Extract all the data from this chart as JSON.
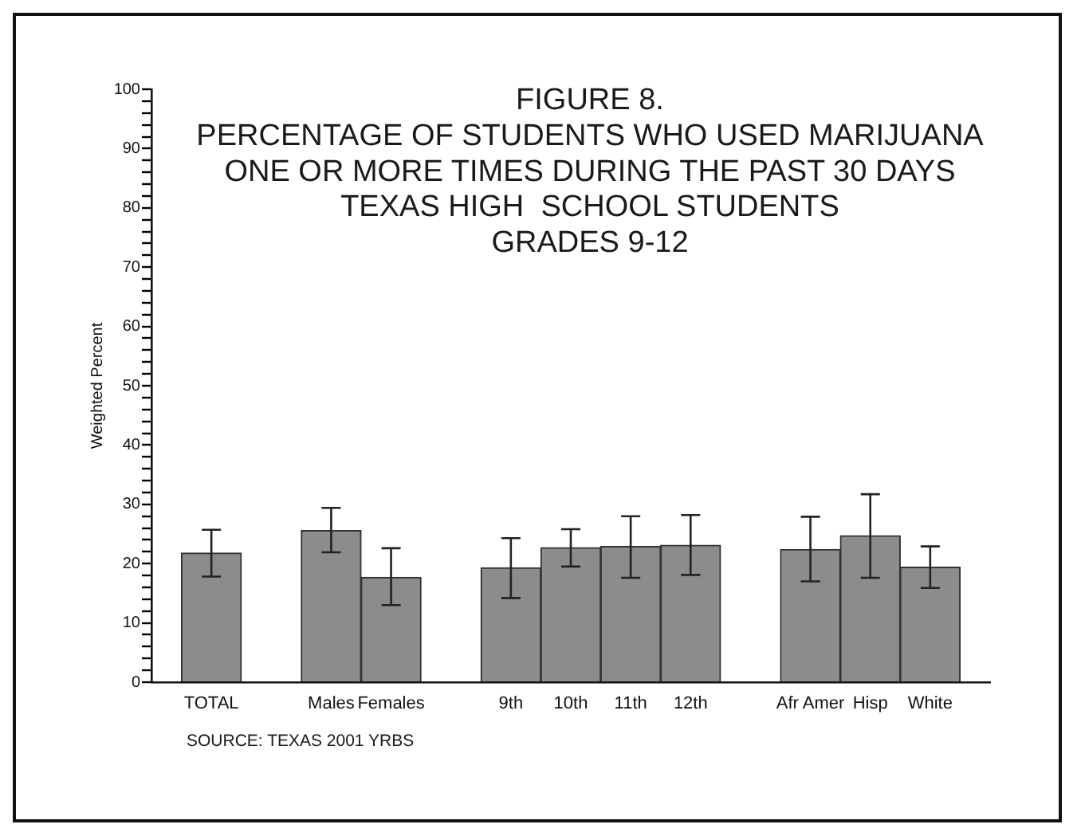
{
  "chart_data": {
    "type": "bar",
    "title": "FIGURE 8.\nPERCENTAGE OF STUDENTS WHO USED MARIJUANA\nONE OR MORE TIMES DURING THE PAST 30 DAYS\nTEXAS HIGH  SCHOOL STUDENTS\nGRADES 9-12",
    "ylabel": "Weighted Percent",
    "annotations": [
      "SOURCE: TEXAS 2001 YRBS"
    ],
    "categories": [
      "TOTAL",
      null,
      "Males",
      "Females",
      null,
      "9th",
      "10th",
      "11th",
      "12th",
      null,
      "Afr Amer",
      "Hisp",
      "White"
    ],
    "values": [
      21.8,
      null,
      25.6,
      17.7,
      null,
      19.3,
      22.7,
      22.9,
      23.1,
      null,
      22.4,
      24.7,
      19.4
    ],
    "errors": [
      [
        17.8,
        25.7
      ],
      null,
      [
        21.9,
        29.4
      ],
      [
        13.0,
        22.6
      ],
      null,
      [
        14.2,
        24.3
      ],
      [
        19.5,
        25.8
      ],
      [
        17.6,
        28.0
      ],
      [
        18.1,
        28.2
      ],
      null,
      [
        17.0,
        27.9
      ],
      [
        17.6,
        31.7
      ],
      [
        15.9,
        22.9
      ]
    ],
    "color": "#8c8c8c",
    "ylim": [
      0,
      100
    ],
    "yticks": [
      0,
      {
        "value": 2,
        "label": null
      },
      {
        "value": 4,
        "label": null
      },
      {
        "value": 6,
        "label": null
      },
      {
        "value": 8,
        "label": null
      },
      10,
      {
        "value": 12,
        "label": null
      },
      {
        "value": 14,
        "label": null
      },
      {
        "value": 16,
        "label": null
      },
      {
        "value": 18,
        "label": null
      },
      20,
      {
        "value": 22,
        "label": null
      },
      {
        "value": 24,
        "label": null
      },
      {
        "value": 26,
        "label": null
      },
      {
        "value": 28,
        "label": null
      },
      30,
      {
        "value": 32,
        "label": null
      },
      {
        "value": 34,
        "label": null
      },
      {
        "value": 36,
        "label": null
      },
      {
        "value": 38,
        "label": null
      },
      40,
      {
        "value": 42,
        "label": null
      },
      {
        "value": 44,
        "label": null
      },
      {
        "value": 46,
        "label": null
      },
      {
        "value": 48,
        "label": null
      },
      50,
      {
        "value": 52,
        "label": null
      },
      {
        "value": 54,
        "label": null
      },
      {
        "value": 56,
        "label": null
      },
      {
        "value": 58,
        "label": null
      },
      60,
      {
        "value": 62,
        "label": null
      },
      {
        "value": 64,
        "label": null
      },
      {
        "value": 66,
        "label": null
      },
      {
        "value": 68,
        "label": null
      },
      70,
      {
        "value": 72,
        "label": null
      },
      {
        "value": 74,
        "label": null
      },
      {
        "value": 76,
        "label": null
      },
      {
        "value": 78,
        "label": null
      },
      80,
      {
        "value": 82,
        "label": null
      },
      {
        "value": 84,
        "label": null
      },
      {
        "value": 86,
        "label": null
      },
      {
        "value": 88,
        "label": null
      },
      90,
      {
        "value": 92,
        "label": null
      },
      {
        "value": 94,
        "label": null
      },
      {
        "value": 96,
        "label": null
      },
      {
        "value": 98,
        "label": null
      },
      100
    ]
  }
}
